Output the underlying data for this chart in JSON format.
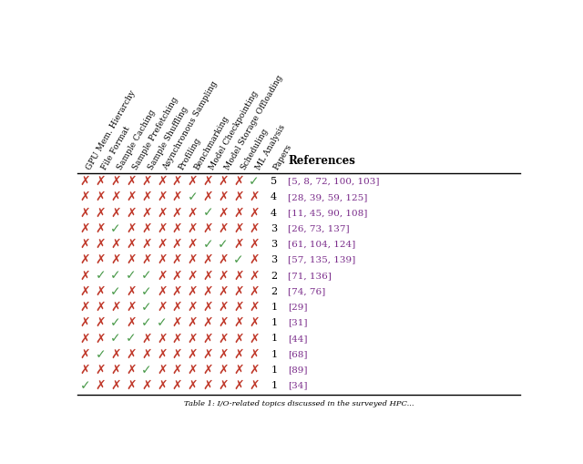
{
  "columns": [
    "GPU Mem. Hierarchy",
    "File Format",
    "Sample Caching",
    "Sample Prefetching",
    "Sample Shuffling",
    "Asynchronous Sampling",
    "Profiling",
    "Benchmarking",
    "Model Checkpointing",
    "Model Storage Offloading",
    "Scheduling",
    "ML Analysis"
  ],
  "papers_col": "Papers",
  "refs_col": "References",
  "rows": [
    {
      "marks": [
        0,
        0,
        0,
        0,
        0,
        0,
        0,
        0,
        0,
        0,
        0,
        1
      ],
      "papers": 5,
      "ref": "[5, 8, 72, 100, 103]"
    },
    {
      "marks": [
        0,
        0,
        0,
        0,
        0,
        0,
        0,
        1,
        0,
        0,
        0,
        0
      ],
      "papers": 4,
      "ref": "[28, 39, 59, 125]"
    },
    {
      "marks": [
        0,
        0,
        0,
        0,
        0,
        0,
        0,
        0,
        1,
        0,
        0,
        0
      ],
      "papers": 4,
      "ref": "[11, 45, 90, 108]"
    },
    {
      "marks": [
        0,
        0,
        1,
        0,
        0,
        0,
        0,
        0,
        0,
        0,
        0,
        0
      ],
      "papers": 3,
      "ref": "[26, 73, 137]"
    },
    {
      "marks": [
        0,
        0,
        0,
        0,
        0,
        0,
        0,
        0,
        1,
        1,
        0,
        0
      ],
      "papers": 3,
      "ref": "[61, 104, 124]"
    },
    {
      "marks": [
        0,
        0,
        0,
        0,
        0,
        0,
        0,
        0,
        0,
        0,
        1,
        0
      ],
      "papers": 3,
      "ref": "[57, 135, 139]"
    },
    {
      "marks": [
        0,
        1,
        1,
        1,
        1,
        0,
        0,
        0,
        0,
        0,
        0,
        0
      ],
      "papers": 2,
      "ref": "[71, 136]"
    },
    {
      "marks": [
        0,
        0,
        1,
        0,
        1,
        0,
        0,
        0,
        0,
        0,
        0,
        0
      ],
      "papers": 2,
      "ref": "[74, 76]"
    },
    {
      "marks": [
        0,
        0,
        0,
        0,
        1,
        0,
        0,
        0,
        0,
        0,
        0,
        0
      ],
      "papers": 1,
      "ref": "[29]"
    },
    {
      "marks": [
        0,
        0,
        1,
        0,
        1,
        1,
        0,
        0,
        0,
        0,
        0,
        0
      ],
      "papers": 1,
      "ref": "[31]"
    },
    {
      "marks": [
        0,
        0,
        1,
        1,
        0,
        0,
        0,
        0,
        0,
        0,
        0,
        0
      ],
      "papers": 1,
      "ref": "[44]"
    },
    {
      "marks": [
        0,
        1,
        0,
        0,
        0,
        0,
        0,
        0,
        0,
        0,
        0,
        0
      ],
      "papers": 1,
      "ref": "[68]"
    },
    {
      "marks": [
        0,
        0,
        0,
        0,
        1,
        0,
        0,
        0,
        0,
        0,
        0,
        0
      ],
      "papers": 1,
      "ref": "[89]"
    },
    {
      "marks": [
        1,
        0,
        0,
        0,
        0,
        0,
        0,
        0,
        0,
        0,
        0,
        0
      ],
      "papers": 1,
      "ref": "[34]"
    }
  ],
  "check_color": "#4a9a4a",
  "cross_color": "#c0392b",
  "ref_color": "#7b2d8b",
  "header_color": "#000000",
  "bg_color": "#ffffff",
  "caption": "Table 1: I/O-related topics discussed in the surveyed HPC..."
}
